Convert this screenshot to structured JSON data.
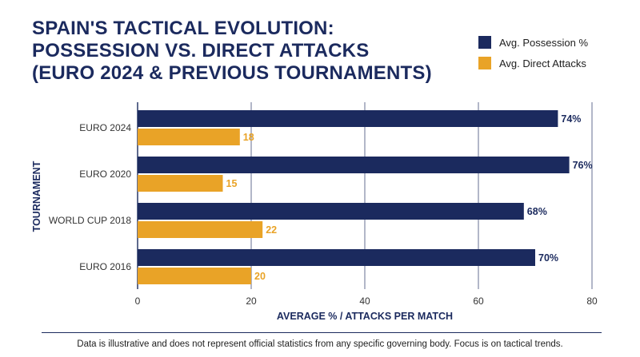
{
  "title_lines": [
    "SPAIN'S TACTICAL EVOLUTION:",
    "POSSESSION VS. DIRECT ATTACKS",
    "(EURO 2024 & PREVIOUS TOURNAMENTS)"
  ],
  "footnote": "Data is illustrative and does not represent official statistics from any specific governing body. Focus is on tactical trends.",
  "chart_data": {
    "type": "bar",
    "orientation": "horizontal",
    "categories": [
      "EURO 2024",
      "EURO 2020",
      "WORLD CUP 2018",
      "EURO 2016"
    ],
    "series": [
      {
        "name": "Avg. Possession %",
        "values": [
          74,
          76,
          68,
          70
        ],
        "color": "#1b2a5e",
        "label_suffix": "%"
      },
      {
        "name": "Avg. Direct Attacks",
        "values": [
          18,
          15,
          22,
          20
        ],
        "color": "#e9a327",
        "label_suffix": ""
      }
    ],
    "xlabel": "AVERAGE % / ATTACKS PER MATCH",
    "ylabel": "TOURNAMENT",
    "xlim": [
      0,
      80
    ],
    "xticks": [
      0,
      20,
      40,
      60,
      80
    ],
    "grid": true,
    "legend_position": "top-right"
  }
}
